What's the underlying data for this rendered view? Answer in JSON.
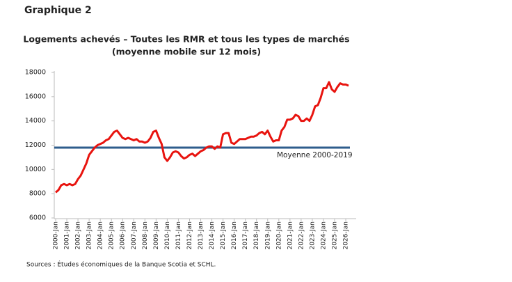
{
  "header": "Graphique 2",
  "chart_data": {
    "type": "line",
    "title": "Logements achevés – Toutes les RMR et tous les types de marchés",
    "subtitle": "(moyenne mobile sur 12 mois)",
    "categories": [
      "2000-Jan",
      null,
      null,
      null,
      "2001-Jan",
      null,
      null,
      null,
      "2002-Jan",
      null,
      null,
      null,
      "2003-Jan",
      null,
      null,
      null,
      "2004-Jan",
      null,
      null,
      null,
      "2005-Jan",
      null,
      null,
      null,
      "2006-Jan",
      null,
      null,
      null,
      "2007-Jan",
      null,
      null,
      null,
      "2008-Jan",
      null,
      null,
      null,
      "2009-Jan",
      null,
      null,
      null,
      "2010-Jan",
      null,
      null,
      null,
      "2011-Jan",
      null,
      null,
      null,
      "2012-Jan",
      null,
      null,
      null,
      "2013-Jan",
      null,
      null,
      null,
      "2014-Jan",
      null,
      null,
      null,
      "2015-Jan",
      null,
      null,
      null,
      "2016-Jan",
      null,
      null,
      null,
      "2017-Jan",
      null,
      null,
      null,
      "2018-Jan",
      null,
      null,
      null,
      "2019-Jan",
      null,
      null,
      null,
      "2020-Jan",
      null,
      null,
      null,
      "2021-Jan",
      null,
      null,
      null,
      "2022-Jan",
      null,
      null,
      null,
      "2023-Jan",
      null,
      null,
      null,
      "2024-Jan",
      null,
      null,
      null,
      "2025-Jan",
      null,
      null,
      null,
      "2026-Jan",
      null
    ],
    "series": [
      {
        "color": "#e8140f",
        "values": [
          8100,
          8300,
          8700,
          8800,
          8700,
          8800,
          8700,
          8800,
          9200,
          9500,
          10000,
          10500,
          11200,
          11500,
          11800,
          12000,
          12100,
          12200,
          12400,
          12500,
          12800,
          13100,
          13200,
          12900,
          12600,
          12500,
          12600,
          12500,
          12400,
          12500,
          12300,
          12300,
          12200,
          12300,
          12600,
          13100,
          13200,
          12600,
          12100,
          11000,
          10700,
          11000,
          11400,
          11500,
          11400,
          11100,
          10900,
          11000,
          11200,
          11300,
          11100,
          11300,
          11500,
          11600,
          11800,
          11900,
          11900,
          11700,
          11900,
          11800,
          12900,
          13000,
          13000,
          12200,
          12100,
          12300,
          12500,
          12500,
          12500,
          12600,
          12700,
          12700,
          12800,
          13000,
          13100,
          12900,
          13200,
          12700,
          12300,
          12400,
          12400,
          13200,
          13500,
          14100,
          14100,
          14200,
          14500,
          14400,
          14000,
          14000,
          14200,
          14000,
          14500,
          15200,
          15300,
          15900,
          16700,
          16700,
          17200,
          16600,
          16400,
          16800,
          17100,
          17000,
          17000,
          16900
        ]
      }
    ],
    "average": {
      "label": "Moyenne 2000-2019",
      "value": 11800,
      "color": "#2e5d8c"
    },
    "ylim": [
      6000,
      18000
    ],
    "yticks": [
      6000,
      8000,
      10000,
      12000,
      14000,
      16000,
      18000
    ],
    "source": "Sources : Études économiques de la Banque Scotia et SCHL."
  }
}
